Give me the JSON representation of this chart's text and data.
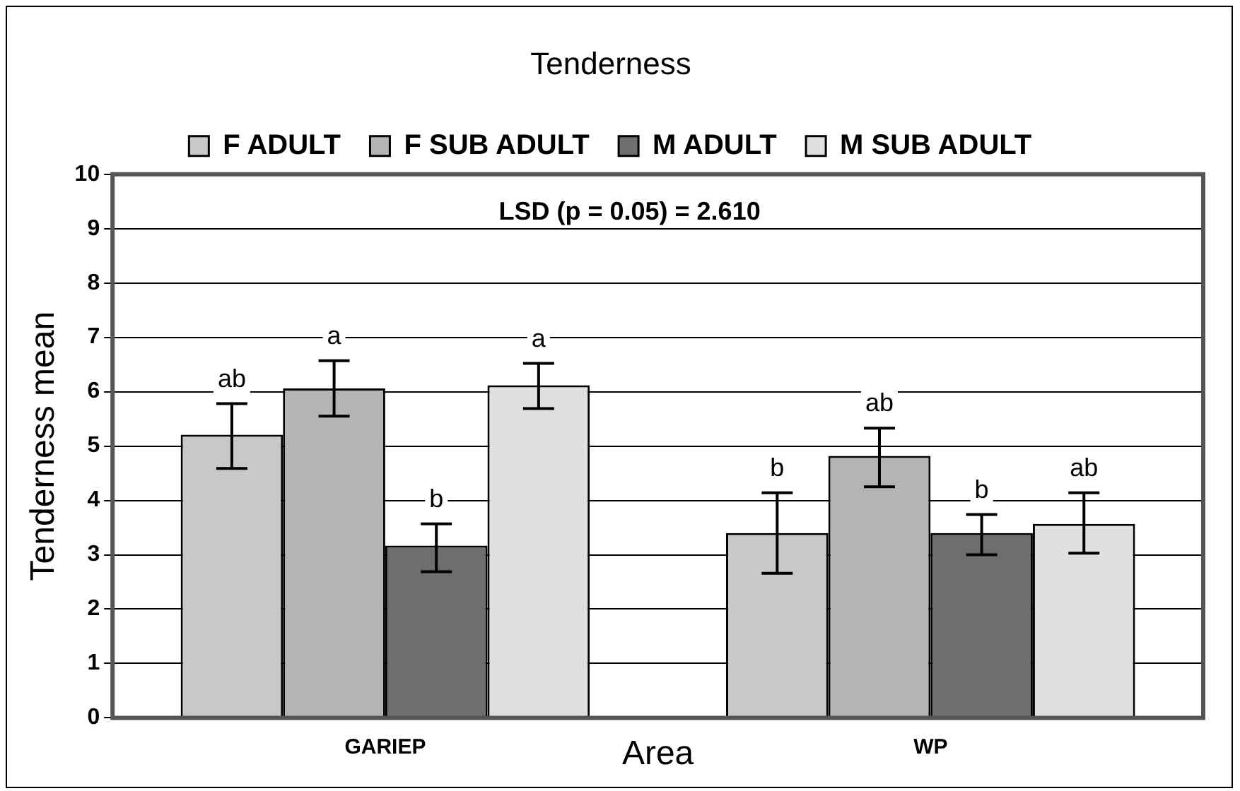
{
  "chart_data": {
    "type": "bar",
    "title": "Tenderness",
    "xlabel": "Area",
    "ylabel": "Tenderness mean",
    "categories": [
      "GARIEP",
      "WP"
    ],
    "series": [
      {
        "name": "F ADULT",
        "color": "#c8c8c8",
        "values": [
          5.21,
          3.4
        ],
        "errors": [
          [
            4.59,
            5.78
          ],
          [
            2.66,
            4.14
          ]
        ],
        "value_labels": [
          "ab",
          "b"
        ]
      },
      {
        "name": "F SUB ADULT",
        "color": "#b4b4b4",
        "values": [
          6.06,
          4.82
        ],
        "errors": [
          [
            5.55,
            6.57
          ],
          [
            4.25,
            5.33
          ]
        ],
        "value_labels": [
          "a",
          "ab"
        ]
      },
      {
        "name": "M ADULT",
        "color": "#6e6e6e",
        "values": [
          3.17,
          3.4
        ],
        "errors": [
          [
            2.69,
            3.57
          ],
          [
            3.0,
            3.74
          ]
        ],
        "value_labels": [
          "b",
          "b"
        ]
      },
      {
        "name": "M SUB ADULT",
        "color": "#e0e0e0",
        "values": [
          6.12,
          3.57
        ],
        "errors": [
          [
            5.69,
            6.52
          ],
          [
            3.03,
            4.14
          ]
        ],
        "value_labels": [
          "a",
          "ab"
        ]
      }
    ],
    "ylim": [
      0,
      10
    ],
    "yticks": [
      0,
      1,
      2,
      3,
      4,
      5,
      6,
      7,
      8,
      9,
      10
    ],
    "grid": "y",
    "legend": "top",
    "annotations": [
      "LSD (p = 0.05) = 2.610"
    ]
  }
}
